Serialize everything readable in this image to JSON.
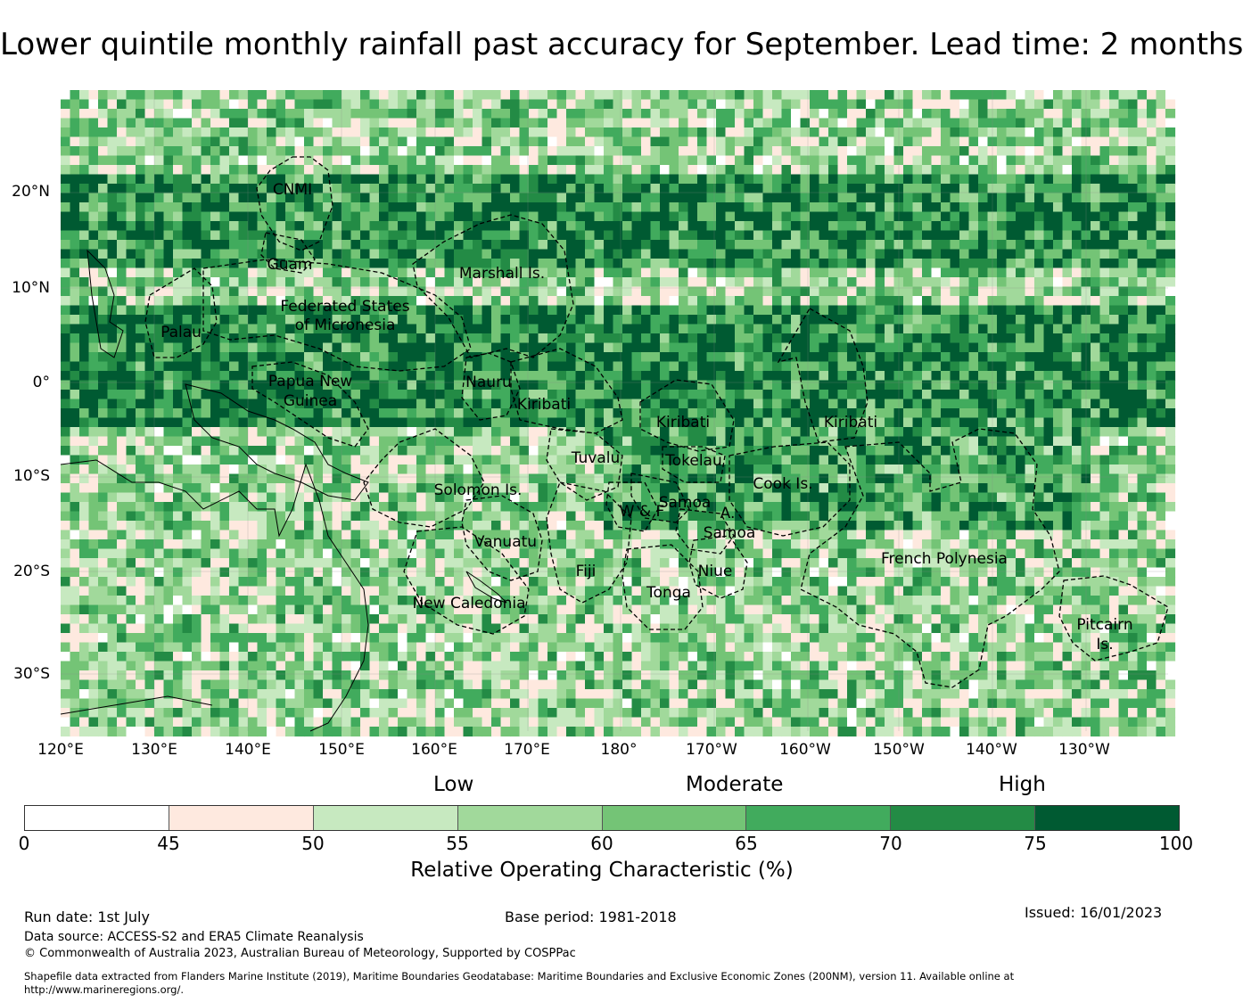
{
  "title": "Lower quintile monthly rainfall past accuracy for September. Lead time: 2 months",
  "map": {
    "lat_labels": [
      "20°N",
      "10°N",
      "0°",
      "10°S",
      "20°S",
      "30°S"
    ],
    "lon_labels": [
      "120°E",
      "130°E",
      "140°E",
      "150°E",
      "160°E",
      "170°E",
      "180°",
      "170°W",
      "160°W",
      "150°W",
      "140°W",
      "130°W"
    ],
    "regions": [
      "CNMI",
      "Guam",
      "Marshall Is.",
      "Federated States",
      "of Micronesia",
      "Palau",
      "Papua New",
      "Guinea",
      "Nauru",
      "Kiribati",
      "Kiribati",
      "Kiribati",
      "Tuvalu",
      "Tokelau",
      "Cook Is.",
      "Solomon Is.",
      "W & F",
      "Samoa",
      "A.",
      "Samoa",
      "Vanuatu",
      "Fiji",
      "Niue",
      "Tonga",
      "New Caledonia",
      "French Polynesia",
      "Pitcairn",
      "Is."
    ]
  },
  "legend": {
    "categories": [
      "Low",
      "Moderate",
      "High"
    ],
    "ticks": [
      "0",
      "45",
      "50",
      "55",
      "60",
      "65",
      "70",
      "75",
      "100"
    ],
    "colors": [
      "#ffffff",
      "#fee9df",
      "#c7e9c0",
      "#a1d99b",
      "#74c476",
      "#41ab5d",
      "#238b45",
      "#005a32"
    ],
    "label": "Relative Operating Characteristic (%)"
  },
  "footer": {
    "run_date": "Run date: 1st July",
    "base_period": "Base period: 1981-2018",
    "issued": "Issued: 16/01/2023",
    "data_source": "Data source: ACCESS-S2 and ERA5 Climate Reanalysis",
    "copyright": "© Commonwealth of Australia 2023, Australian Bureau of Meteorology, Supported by COSPPac",
    "shapefile_line1": "Shapefile data extracted from Flanders Marine Institute (2019), Maritime Boundaries Geodatabase: Maritime Boundaries and Exclusive Economic Zones (200NM), version 11. Available online at",
    "shapefile_line2": "http://www.marineregions.org/."
  }
}
